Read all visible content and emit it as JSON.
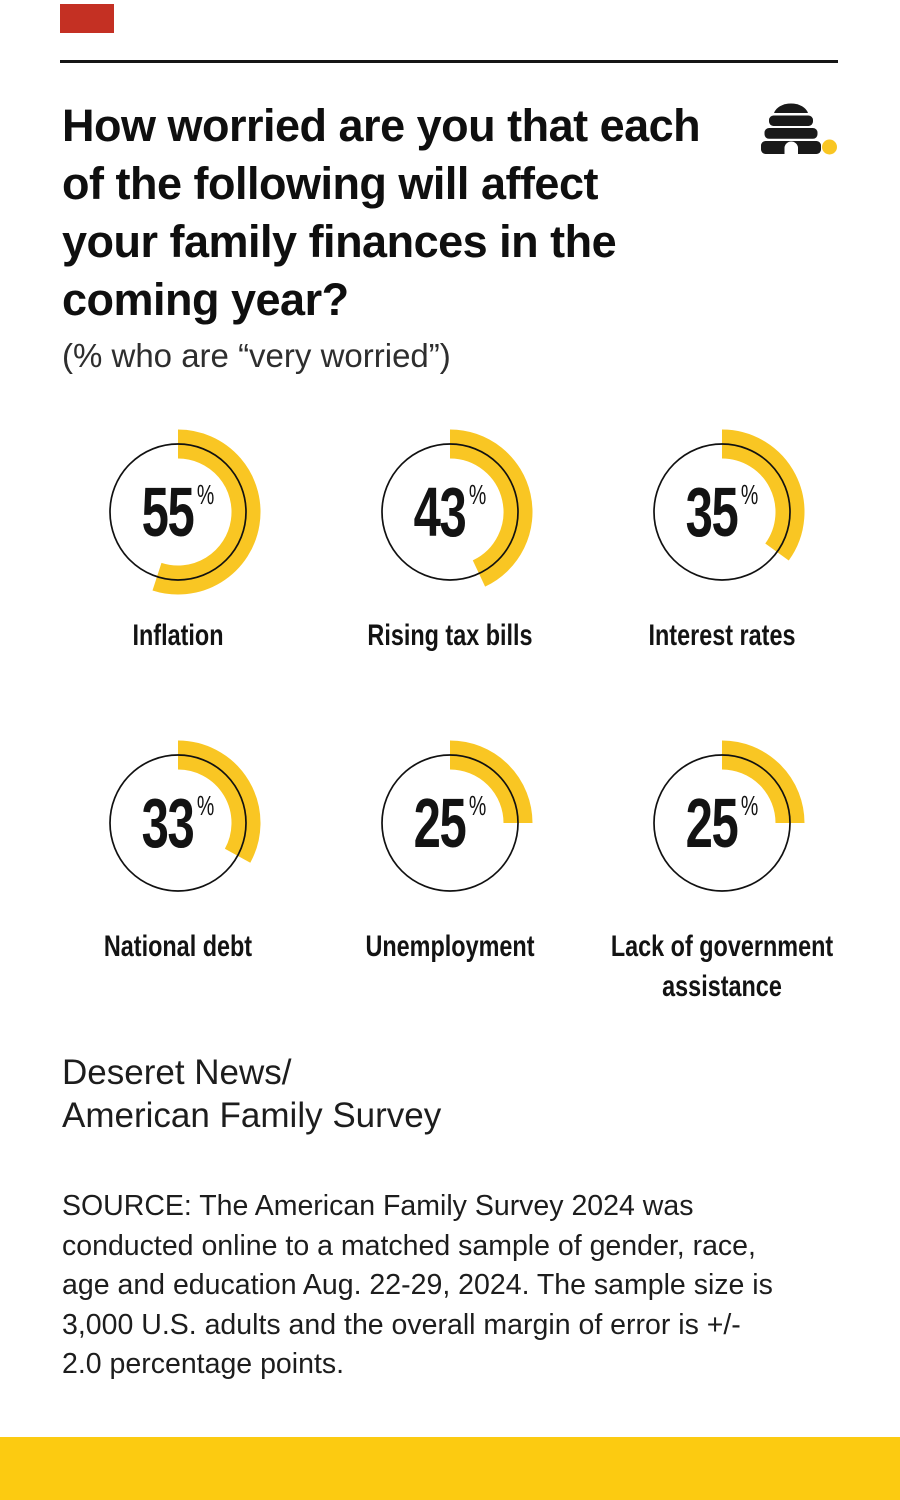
{
  "header": {
    "title_lines": [
      "How worried are you that each",
      "of the following will affect",
      "your family finances in the",
      "coming year?"
    ],
    "subtitle": "(% who are “very worried”)",
    "logo_name": "deseret-news-beehive-logo"
  },
  "chart_data": {
    "type": "donut",
    "title": "How worried are you that each of the following will affect your family finances in the coming year?",
    "subtitle": "(% who are “very worried”)",
    "unit": "%",
    "categories": [
      "Inflation",
      "Rising tax bills",
      "Interest rates",
      "National debt",
      "Unemployment",
      "Lack of government assistance"
    ],
    "values": [
      55,
      43,
      35,
      33,
      25,
      25
    ],
    "value_range": [
      0,
      100
    ],
    "arc_start": "top, clockwise",
    "layout": "2 rows x 3 columns",
    "accent_color": "#F9C623",
    "ring_outline_color": "#111111"
  },
  "footer": {
    "credit_lines": [
      "Deseret News/",
      "American Family Survey"
    ],
    "source_lines": [
      "SOURCE: The American Family Survey 2024 was",
      "conducted online to a matched sample of gender, race,",
      "age and education Aug. 22-29, 2024. The sample size is",
      "3,000 U.S. adults and the overall margin of error is +/-",
      "2.0 percentage points."
    ]
  },
  "colors": {
    "brand_red": "#C43023",
    "brand_yellow": "#F9C623",
    "bottom_bar_yellow": "#FCCB11",
    "ink": "#131313",
    "ring_outline": "#111111"
  }
}
